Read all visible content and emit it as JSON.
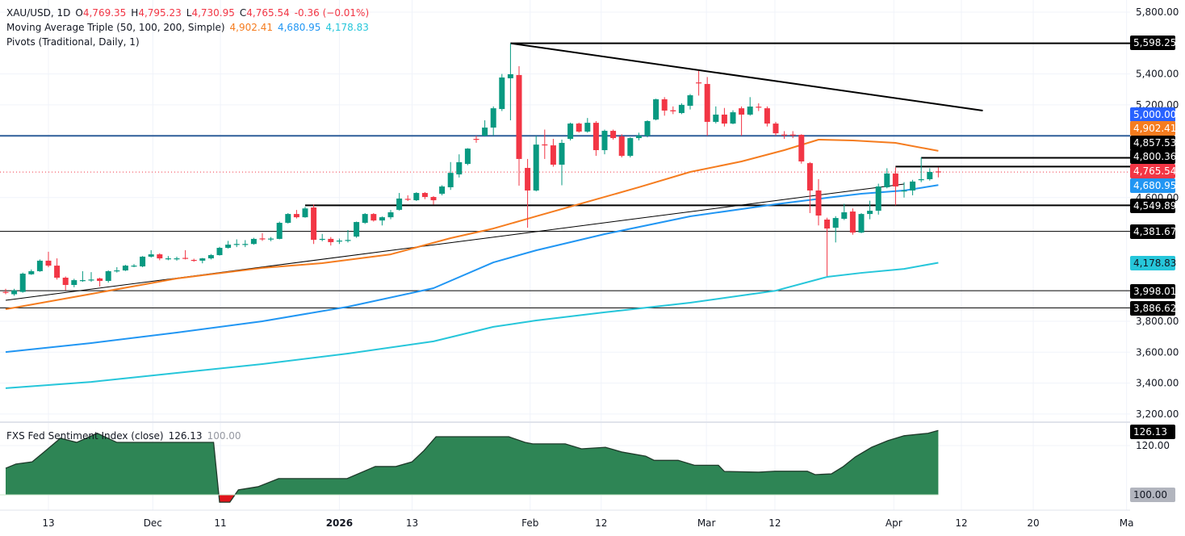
{
  "header": {
    "symbol": "XAU/USD, 1D",
    "open_label": "O",
    "open": "4,769.35",
    "high_label": "H",
    "high": "4,795.23",
    "low_label": "L",
    "low": "4,730.95",
    "close_label": "C",
    "close": "4,765.54",
    "change": "-0.36 (−0.01%)",
    "ma_title": "Moving Average Triple (50, 100, 200, Simple)",
    "ma50": "4,902.41",
    "ma100": "4,680.95",
    "ma200": "4,178.83",
    "pivots_title": "Pivots (Traditional, Daily, 1)"
  },
  "sub_legend": {
    "title": "FXS Fed Sentiment Index (close)",
    "value": "126.13",
    "baseline": "100.00"
  },
  "colors": {
    "up": "#089981",
    "down": "#f23645",
    "ma50": "#f57c1f",
    "ma100": "#2196f3",
    "ma200": "#26c6da",
    "level_5000": "#2962ff",
    "sentiment_fill": "#2e8555",
    "sentiment_negative": "#e0141b"
  },
  "chart_data": [
    {
      "type": "candlestick",
      "symbol": "XAU/USD",
      "timeframe": "1D",
      "ylim": [
        3150,
        5850
      ],
      "y_ticks": [
        "5,800.00",
        "5,400.00",
        "5,200.00",
        "4,600.00",
        "3,800.00",
        "3,600.00",
        "3,400.00",
        "3,200.00"
      ],
      "y_tick_values": [
        5800,
        5400,
        5200,
        4600,
        3800,
        3600,
        3400,
        3200
      ],
      "x_ticks": [
        {
          "label": "13",
          "bar": 5
        },
        {
          "label": "Dec",
          "bar": 17.2
        },
        {
          "label": "11",
          "bar": 25.1
        },
        {
          "label": "2026",
          "bar": 39
        },
        {
          "label": "13",
          "bar": 47.5
        },
        {
          "label": "Feb",
          "bar": 61.3
        },
        {
          "label": "12",
          "bar": 69.6
        },
        {
          "label": "Mar",
          "bar": 81.9
        },
        {
          "label": "12",
          "bar": 89.9
        },
        {
          "label": "Apr",
          "bar": 103.8
        },
        {
          "label": "12",
          "bar": 111.7
        },
        {
          "label": "20",
          "bar": 120.1
        },
        {
          "label": "Ma",
          "bar": 131
        }
      ],
      "candles_ohlc": [
        [
          3990,
          4010,
          3975,
          3985
        ],
        [
          3975,
          4010,
          3965,
          4000
        ],
        [
          3990,
          4115,
          3985,
          4108
        ],
        [
          4104,
          4135,
          4100,
          4124
        ],
        [
          4124,
          4200,
          4120,
          4192
        ],
        [
          4192,
          4250,
          4150,
          4160
        ],
        [
          4160,
          4207,
          4070,
          4082
        ],
        [
          4082,
          4090,
          4000,
          4035
        ],
        [
          4035,
          4075,
          4020,
          4066
        ],
        [
          4066,
          4124,
          4055,
          4066
        ],
        [
          4066,
          4118,
          4055,
          4070
        ],
        [
          4077,
          4082,
          4025,
          4061
        ],
        [
          4061,
          4130,
          4050,
          4124
        ],
        [
          4129,
          4150,
          4115,
          4129
        ],
        [
          4129,
          4165,
          4125,
          4160
        ],
        [
          4160,
          4170,
          4150,
          4160
        ],
        [
          4155,
          4222,
          4150,
          4218
        ],
        [
          4218,
          4260,
          4212,
          4233
        ],
        [
          4233,
          4240,
          4195,
          4207
        ],
        [
          4207,
          4222,
          4195,
          4207
        ],
        [
          4203,
          4218,
          4192,
          4207
        ],
        [
          4210,
          4260,
          4200,
          4205
        ],
        [
          4197,
          4205,
          4185,
          4192
        ],
        [
          4192,
          4210,
          4175,
          4207
        ],
        [
          4207,
          4235,
          4200,
          4228
        ],
        [
          4228,
          4282,
          4225,
          4275
        ],
        [
          4275,
          4320,
          4270,
          4296
        ],
        [
          4296,
          4330,
          4280,
          4300
        ],
        [
          4296,
          4325,
          4280,
          4300
        ],
        [
          4300,
          4340,
          4295,
          4333
        ],
        [
          4336,
          4370,
          4320,
          4333
        ],
        [
          4330,
          4345,
          4318,
          4335
        ],
        [
          4333,
          4445,
          4330,
          4437
        ],
        [
          4437,
          4500,
          4432,
          4494
        ],
        [
          4494,
          4520,
          4465,
          4473
        ],
        [
          4473,
          4540,
          4470,
          4530
        ],
        [
          4536,
          4555,
          4300,
          4327
        ],
        [
          4327,
          4365,
          4318,
          4333
        ],
        [
          4333,
          4345,
          4290,
          4312
        ],
        [
          4318,
          4335,
          4300,
          4322
        ],
        [
          4322,
          4390,
          4310,
          4326
        ],
        [
          4348,
          4445,
          4340,
          4442
        ],
        [
          4437,
          4500,
          4430,
          4494
        ],
        [
          4494,
          4500,
          4445,
          4452
        ],
        [
          4452,
          4478,
          4420,
          4473
        ],
        [
          4473,
          4520,
          4460,
          4505
        ],
        [
          4521,
          4630,
          4516,
          4594
        ],
        [
          4592,
          4615,
          4578,
          4588
        ],
        [
          4583,
          4635,
          4578,
          4630
        ],
        [
          4630,
          4636,
          4590,
          4604
        ],
        [
          4604,
          4610,
          4555,
          4583
        ],
        [
          4625,
          4680,
          4615,
          4672
        ],
        [
          4667,
          4830,
          4650,
          4760
        ],
        [
          4750,
          4880,
          4730,
          4829
        ],
        [
          4818,
          4920,
          4810,
          4917
        ],
        [
          4980,
          5000,
          4955,
          4975
        ],
        [
          5001,
          5100,
          4995,
          5053
        ],
        [
          5053,
          5190,
          5000,
          5178
        ],
        [
          5173,
          5400,
          5160,
          5377
        ],
        [
          5372,
          5598.25,
          5100,
          5398
        ],
        [
          5393,
          5450,
          4677,
          4850
        ],
        [
          4792,
          4850,
          4405,
          4646
        ],
        [
          4646,
          5000,
          4640,
          4943
        ],
        [
          4944,
          5040,
          4850,
          4938
        ],
        [
          4938,
          4980,
          4800,
          4813
        ],
        [
          4813,
          4975,
          4680,
          4954
        ],
        [
          4980,
          5085,
          4970,
          5079
        ],
        [
          5079,
          5085,
          5020,
          5027
        ],
        [
          5027,
          5115,
          5020,
          5084
        ],
        [
          5084,
          5095,
          4870,
          4907
        ],
        [
          4907,
          5040,
          4880,
          5032
        ],
        [
          5032,
          5040,
          4975,
          4985
        ],
        [
          4996,
          5010,
          4860,
          4870
        ],
        [
          4870,
          4990,
          4860,
          4985
        ],
        [
          4985,
          5020,
          4970,
          5001
        ],
        [
          5001,
          5100,
          4990,
          5095
        ],
        [
          5105,
          5240,
          5100,
          5236
        ],
        [
          5236,
          5250,
          5130,
          5163
        ],
        [
          5165,
          5190,
          5140,
          5158
        ],
        [
          5147,
          5210,
          5140,
          5200
        ],
        [
          5194,
          5270,
          5170,
          5262
        ],
        [
          5345,
          5420,
          5260,
          5340
        ],
        [
          5335,
          5380,
          5000,
          5090
        ],
        [
          5090,
          5190,
          5080,
          5137
        ],
        [
          5137,
          5180,
          5060,
          5079
        ],
        [
          5079,
          5165,
          5075,
          5152
        ],
        [
          5178,
          5190,
          5000,
          5137
        ],
        [
          5137,
          5250,
          5130,
          5189
        ],
        [
          5188,
          5210,
          5160,
          5184
        ],
        [
          5178,
          5190,
          5060,
          5079
        ],
        [
          5079,
          5090,
          5000,
          5016
        ],
        [
          5008,
          5030,
          4980,
          5006
        ],
        [
          5008,
          5030,
          4985,
          5006
        ],
        [
          5006,
          5010,
          4820,
          4834
        ],
        [
          4823,
          4830,
          4500,
          4646
        ],
        [
          4646,
          4720,
          4420,
          4484
        ],
        [
          4458,
          4470,
          4092,
          4400
        ],
        [
          4405,
          4480,
          4310,
          4468
        ],
        [
          4463,
          4560,
          4455,
          4505
        ],
        [
          4510,
          4530,
          4360,
          4374
        ],
        [
          4374,
          4500,
          4370,
          4494
        ],
        [
          4494,
          4580,
          4460,
          4515
        ],
        [
          4515,
          4690,
          4490,
          4672
        ],
        [
          4667,
          4790,
          4660,
          4756
        ],
        [
          4756,
          4795,
          4550,
          4672
        ],
        [
          4643,
          4700,
          4600,
          4646
        ],
        [
          4646,
          4715,
          4615,
          4704
        ],
        [
          4714,
          4860,
          4700,
          4719
        ],
        [
          4719,
          4790,
          4710,
          4766
        ],
        [
          4769.35,
          4795.23,
          4730.95,
          4765.54
        ]
      ],
      "moving_averages": [
        {
          "name": "50",
          "points": [
            [
              0,
              3878
            ],
            [
              10,
              3977
            ],
            [
              20,
              4077
            ],
            [
              30,
              4145
            ],
            [
              37,
              4176
            ],
            [
              45,
              4233
            ],
            [
              52,
              4338
            ],
            [
              57,
              4400
            ],
            [
              62,
              4479
            ],
            [
              68,
              4573
            ],
            [
              74,
              4667
            ],
            [
              80,
              4766
            ],
            [
              86,
              4834
            ],
            [
              91,
              4907
            ],
            [
              95,
              4975
            ],
            [
              99,
              4970
            ],
            [
              104,
              4954
            ],
            [
              109,
              4902.41
            ]
          ]
        },
        {
          "name": "100",
          "points": [
            [
              0,
              3601
            ],
            [
              10,
              3659
            ],
            [
              20,
              3727
            ],
            [
              30,
              3800
            ],
            [
              40,
              3894
            ],
            [
              50,
              4014
            ],
            [
              57,
              4181
            ],
            [
              62,
              4259
            ],
            [
              70,
              4364
            ],
            [
              80,
              4479
            ],
            [
              90,
              4557
            ],
            [
              96,
              4599
            ],
            [
              100,
              4625
            ],
            [
              105,
              4646
            ],
            [
              109,
              4680.95
            ]
          ]
        },
        {
          "name": "200",
          "points": [
            [
              0,
              3367
            ],
            [
              10,
              3408
            ],
            [
              20,
              3466
            ],
            [
              30,
              3523
            ],
            [
              40,
              3591
            ],
            [
              50,
              3670
            ],
            [
              57,
              3764
            ],
            [
              62,
              3805
            ],
            [
              70,
              3858
            ],
            [
              80,
              3920
            ],
            [
              90,
              3998
            ],
            [
              96,
              4087
            ],
            [
              100,
              4113
            ],
            [
              105,
              4139
            ],
            [
              109,
              4178.83
            ]
          ]
        }
      ],
      "horizontal_levels": [
        {
          "label": "5,598.25",
          "value": 5598.25,
          "from_bar": 59,
          "style": "thick"
        },
        {
          "label": "5,000.00",
          "value": 5000,
          "from_bar": null,
          "style": "blue"
        },
        {
          "label": "4,857.53",
          "value": 4857.53,
          "from_bar": 107,
          "style": "thick"
        },
        {
          "label": "4,800.36",
          "value": 4800.36,
          "from_bar": 104,
          "style": "thick"
        },
        {
          "label": "4,549.89",
          "value": 4549.89,
          "from_bar": 35,
          "style": "thick"
        },
        {
          "label": "4,381.67",
          "value": 4381.67,
          "from_bar": null,
          "style": "thin"
        },
        {
          "label": "3,998.01",
          "value": 3998.01,
          "from_bar": null,
          "style": "thin"
        },
        {
          "label": "3,886.62",
          "value": 3886.62,
          "from_bar": null,
          "style": "thin"
        }
      ],
      "badges": [
        {
          "label": "4,902.41",
          "color": "#f57c1f"
        },
        {
          "label": "4,765.54",
          "color": "#f23645"
        },
        {
          "label": "4,680.95",
          "color": "#2196f3"
        },
        {
          "label": "4,178.83",
          "color": "#26c6da"
        }
      ],
      "trendlines": [
        {
          "from": [
            59,
            5598.25
          ],
          "to": [
            114.2,
            5163
          ],
          "style": "thick"
        },
        {
          "from": [
            0,
            3936
          ],
          "to": [
            105,
            4688
          ],
          "style": "thin"
        }
      ],
      "last_price": 4765.54
    },
    {
      "type": "area",
      "title": "FXS Fed Sentiment Index (close)",
      "baseline": 100,
      "y_ticks": [
        "120.00"
      ],
      "points": [
        [
          0,
          110.8
        ],
        [
          1.2,
          112.5
        ],
        [
          3.1,
          113.4
        ],
        [
          4.5,
          117.4
        ],
        [
          6.4,
          123
        ],
        [
          8.3,
          121.3
        ],
        [
          10.7,
          125
        ],
        [
          13,
          121.3
        ],
        [
          24.3,
          121.3
        ],
        [
          25,
          97
        ],
        [
          26.2,
          97
        ],
        [
          27.2,
          102
        ],
        [
          29.5,
          103.3
        ],
        [
          31.9,
          106.6
        ],
        [
          39.9,
          106.6
        ],
        [
          43.2,
          111.5
        ],
        [
          45.6,
          111.5
        ],
        [
          47.5,
          113.4
        ],
        [
          48.9,
          118
        ],
        [
          50.3,
          123.6
        ],
        [
          58.8,
          123.6
        ],
        [
          60.7,
          121.3
        ],
        [
          61.6,
          120.7
        ],
        [
          65.4,
          120.7
        ],
        [
          67.3,
          118.7
        ],
        [
          70.1,
          119.3
        ],
        [
          72,
          117.4
        ],
        [
          74.8,
          115.7
        ],
        [
          75.8,
          114
        ],
        [
          78.6,
          114
        ],
        [
          80.5,
          112
        ],
        [
          83.3,
          112
        ],
        [
          84,
          109.5
        ],
        [
          88,
          109.2
        ],
        [
          89.9,
          109.6
        ],
        [
          93.7,
          109.6
        ],
        [
          94.6,
          108.2
        ],
        [
          96.5,
          108.5
        ],
        [
          97.9,
          111.5
        ],
        [
          99.3,
          115.4
        ],
        [
          101.2,
          119.3
        ],
        [
          103.1,
          122
        ],
        [
          105,
          124
        ],
        [
          107.8,
          125
        ],
        [
          109,
          126.13
        ]
      ]
    }
  ]
}
